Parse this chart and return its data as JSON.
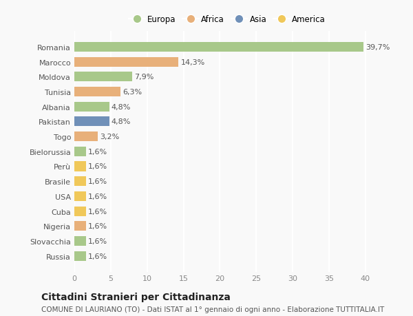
{
  "categories": [
    "Romania",
    "Marocco",
    "Moldova",
    "Tunisia",
    "Albania",
    "Pakistan",
    "Togo",
    "Bielorussia",
    "Perù",
    "Brasile",
    "USA",
    "Cuba",
    "Nigeria",
    "Slovacchia",
    "Russia"
  ],
  "values": [
    39.7,
    14.3,
    7.9,
    6.3,
    4.8,
    4.8,
    3.2,
    1.6,
    1.6,
    1.6,
    1.6,
    1.6,
    1.6,
    1.6,
    1.6
  ],
  "colors": [
    "#a8c88a",
    "#e8b07a",
    "#a8c88a",
    "#e8b07a",
    "#a8c88a",
    "#7090b8",
    "#e8b07a",
    "#a8c88a",
    "#f0c85a",
    "#f0c85a",
    "#f0c85a",
    "#f0c85a",
    "#e8b07a",
    "#a8c88a",
    "#a8c88a"
  ],
  "labels": [
    "39,7%",
    "14,3%",
    "7,9%",
    "6,3%",
    "4,8%",
    "4,8%",
    "3,2%",
    "1,6%",
    "1,6%",
    "1,6%",
    "1,6%",
    "1,6%",
    "1,6%",
    "1,6%",
    "1,6%"
  ],
  "legend": [
    {
      "label": "Europa",
      "color": "#a8c88a"
    },
    {
      "label": "Africa",
      "color": "#e8b07a"
    },
    {
      "label": "Asia",
      "color": "#7090b8"
    },
    {
      "label": "America",
      "color": "#f0c85a"
    }
  ],
  "xlim": [
    0,
    42
  ],
  "xticks": [
    0,
    5,
    10,
    15,
    20,
    25,
    30,
    35,
    40
  ],
  "title": "Cittadini Stranieri per Cittadinanza",
  "subtitle": "COMUNE DI LAURIANO (TO) - Dati ISTAT al 1° gennaio di ogni anno - Elaborazione TUTTITALIA.IT",
  "background_color": "#f9f9f9",
  "plot_bg_color": "#f9f9f9",
  "grid_color": "#ffffff",
  "bar_height": 0.65,
  "title_fontsize": 10,
  "subtitle_fontsize": 7.5,
  "label_fontsize": 8,
  "tick_fontsize": 8
}
